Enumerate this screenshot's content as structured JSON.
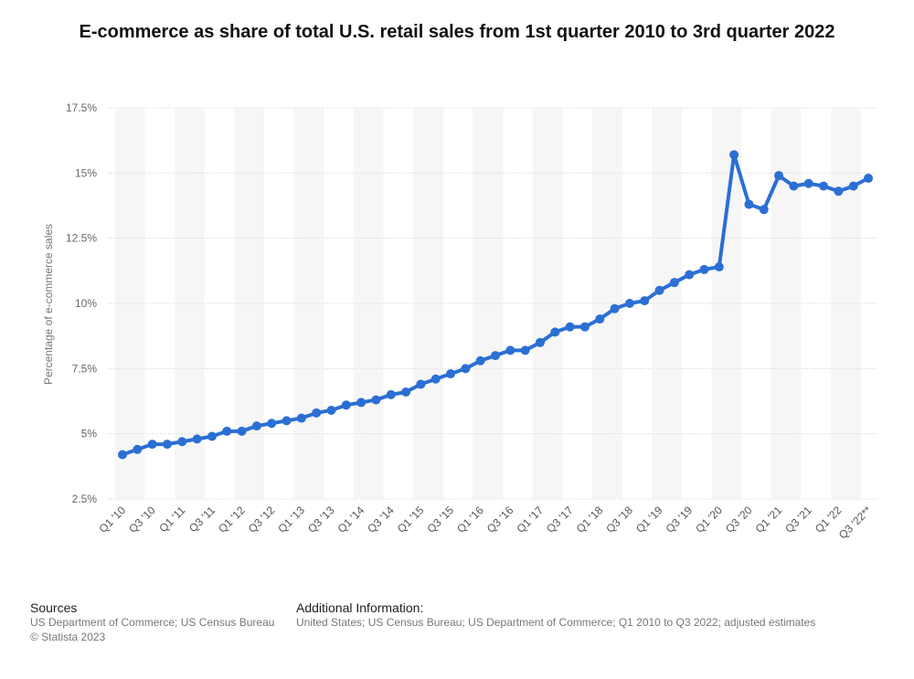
{
  "chart_data": {
    "type": "line",
    "title": "E-commerce as share of total U.S. retail sales from 1st quarter 2010 to 3rd quarter 2022",
    "xlabel": "",
    "ylabel": "Percentage of e-commerce sales",
    "ylim": [
      2.5,
      17.5
    ],
    "y_ticks": [
      2.5,
      5,
      7.5,
      10,
      12.5,
      15,
      17.5
    ],
    "y_tick_labels": [
      "2.5%",
      "5%",
      "7.5%",
      "10%",
      "12.5%",
      "15%",
      "17.5%"
    ],
    "grid": true,
    "legend": "none",
    "categories": [
      "Q1 '10",
      "Q2 '10",
      "Q3 '10",
      "Q4 '10",
      "Q1 '11",
      "Q2 '11",
      "Q3 '11",
      "Q4 '11",
      "Q1 '12",
      "Q2 '12",
      "Q3 '12",
      "Q4 '12",
      "Q1 '13",
      "Q2 '13",
      "Q3 '13",
      "Q4 '13",
      "Q1 '14",
      "Q2 '14",
      "Q3 '14",
      "Q4 '14",
      "Q1 '15",
      "Q2 '15",
      "Q3 '15",
      "Q4 '15",
      "Q1 '16",
      "Q2 '16",
      "Q3 '16",
      "Q4 '16",
      "Q1 '17",
      "Q2 '17",
      "Q3 '17",
      "Q4 '17",
      "Q1 '18",
      "Q2 '18",
      "Q3 '18",
      "Q4 '18",
      "Q1 '19",
      "Q2 '19",
      "Q3 '19",
      "Q4 '19",
      "Q1 '20",
      "Q2 '20",
      "Q3 '20",
      "Q4 '20",
      "Q1 '21",
      "Q2 '21",
      "Q3 '21",
      "Q4 '21",
      "Q1 '22",
      "Q2 '22",
      "Q3 '22**"
    ],
    "x_tick_labels": [
      "Q1 '10",
      "Q3 '10",
      "Q1 '11",
      "Q3 '11",
      "Q1 '12",
      "Q3 '12",
      "Q1 '13",
      "Q3 '13",
      "Q1 '14",
      "Q3 '14",
      "Q1 '15",
      "Q3 '15",
      "Q1 '16",
      "Q3 '16",
      "Q1 '17",
      "Q3 '17",
      "Q1 '18",
      "Q3 '18",
      "Q1 '19",
      "Q3 '19",
      "Q1 '20",
      "Q3 '20",
      "Q1 '21",
      "Q3 '21",
      "Q1 '22",
      "Q3 '22**"
    ],
    "series": [
      {
        "name": "E-commerce share of total retail sales",
        "color": "#2b6fd4",
        "values": [
          4.2,
          4.4,
          4.6,
          4.6,
          4.7,
          4.8,
          4.9,
          5.1,
          5.1,
          5.3,
          5.4,
          5.5,
          5.6,
          5.8,
          5.9,
          6.1,
          6.2,
          6.3,
          6.5,
          6.6,
          6.9,
          7.1,
          7.3,
          7.5,
          7.8,
          8.0,
          8.2,
          8.2,
          8.5,
          8.9,
          9.1,
          9.1,
          9.4,
          9.8,
          10.0,
          10.1,
          10.5,
          10.8,
          11.1,
          11.3,
          11.4,
          15.7,
          13.8,
          13.6,
          14.9,
          14.5,
          14.6,
          14.5,
          14.3,
          14.5,
          14.8
        ]
      }
    ]
  },
  "footer": {
    "sources_heading": "Sources",
    "sources_line1": "US Department of Commerce; US Census Bureau",
    "sources_line2": "© Statista 2023",
    "additional_heading": "Additional Information:",
    "additional_text": "United States; US Census Bureau; US Department of Commerce; Q1 2010 to Q3 2022; adjusted estimates"
  }
}
